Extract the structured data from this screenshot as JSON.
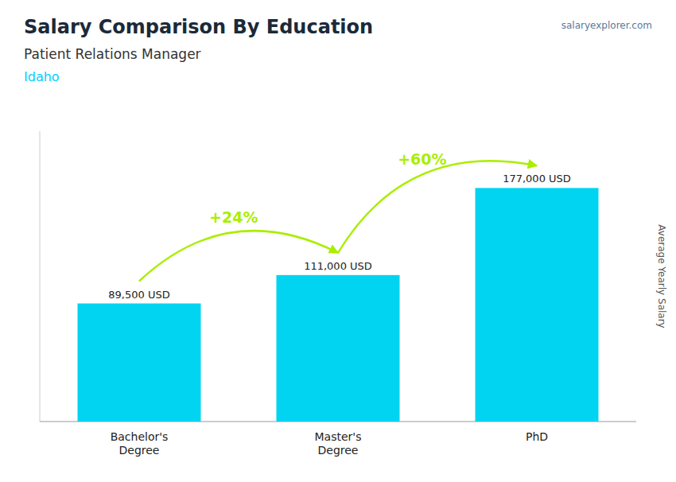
{
  "chart_data": {
    "type": "bar",
    "title": "Salary Comparison By Education",
    "subtitle": "Patient Relations Manager",
    "ylabel": "Average Yearly Salary",
    "categories": [
      "Bachelor's\nDegree",
      "Master's\nDegree",
      "PhD"
    ],
    "values": [
      89500,
      111000,
      177000
    ],
    "value_labels": [
      "89,500 USD",
      "111,000 USD",
      "177,000 USD"
    ],
    "data_labels": true,
    "color": "#00d4f0",
    "ylim": [
      0,
      220000
    ],
    "tick_labels": "x",
    "grid": false,
    "annotations": [
      {
        "text": "Idaho",
        "type": "note",
        "color": "#00cfff"
      },
      {
        "text": "salaryexplorer.com",
        "type": "watermark"
      },
      {
        "text": "+24%",
        "type": "arrow",
        "color": "#aaee00"
      },
      {
        "text": "+60%",
        "type": "arrow",
        "color": "#aaee00"
      }
    ]
  }
}
